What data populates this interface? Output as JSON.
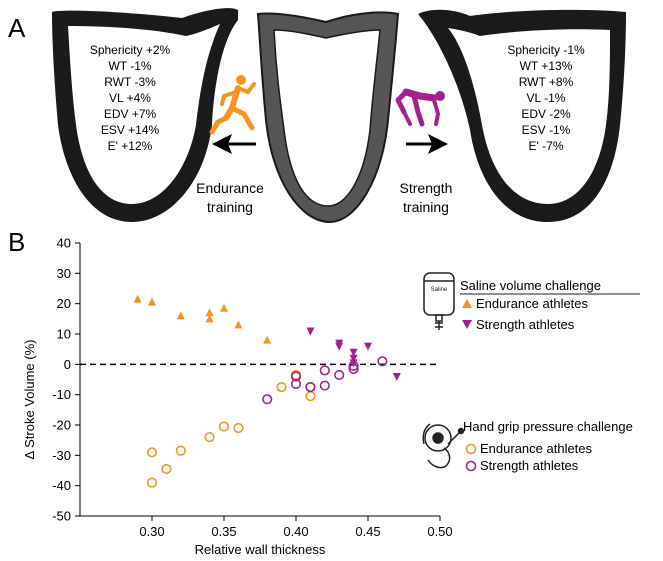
{
  "panel_a": {
    "label": "A",
    "endurance_stats": [
      "Sphericity +2%",
      "WT -1%",
      "RWT -3%",
      "VL +4%",
      "EDV +7%",
      "ESV +14%",
      "E' +12%"
    ],
    "strength_stats": [
      "Sphericity -1%",
      "WT +13%",
      "RWT +8%",
      "VL -1%",
      "EDV -2%",
      "ESV -1%",
      "E' -7%"
    ],
    "endurance_caption": [
      "Endurance",
      "training"
    ],
    "strength_caption": [
      "Strength",
      "training"
    ],
    "colors": {
      "endurance": "#f7941d",
      "strength": "#a3228e",
      "heart_dark": "#1a1a1a",
      "heart_mid": "#555555"
    },
    "icons": [
      "runner-icon",
      "sprinter-start-icon",
      "arrow-left-icon",
      "arrow-right-icon"
    ]
  },
  "panel_b": {
    "label": "B",
    "saline_legend": {
      "title": "Saline volume challenge",
      "items": [
        "Endurance athletes",
        "Strength athletes"
      ],
      "bag_text": "Saline"
    },
    "handgrip_legend": {
      "title": "Hand grip pressure challenge",
      "items": [
        "Endurance athletes",
        "Strength athletes"
      ]
    }
  },
  "chart_data": {
    "type": "scatter",
    "xlabel": "Relative wall thickness",
    "ylabel": "Δ Stroke Volume (%)",
    "xlim": [
      0.25,
      0.5
    ],
    "ylim": [
      -50,
      40
    ],
    "xticks": [
      "0.30",
      "0.35",
      "0.40",
      "0.45",
      "0.50"
    ],
    "yticks": [
      "40",
      "30",
      "20",
      "10",
      "0",
      "-10",
      "-20",
      "-30",
      "-40",
      "-50"
    ],
    "reference_line_y": 0,
    "series": [
      {
        "name": "Endurance athletes",
        "challenge": "Saline volume challenge",
        "marker": "triangle-up",
        "color": "#f7941d",
        "points": [
          [
            0.29,
            21.5
          ],
          [
            0.3,
            20.5
          ],
          [
            0.32,
            16
          ],
          [
            0.34,
            17
          ],
          [
            0.34,
            15
          ],
          [
            0.35,
            18.5
          ],
          [
            0.36,
            13
          ],
          [
            0.38,
            8
          ]
        ]
      },
      {
        "name": "Strength athletes",
        "challenge": "Saline volume challenge",
        "marker": "triangle-down",
        "color": "#a3228e",
        "points": [
          [
            0.41,
            11
          ],
          [
            0.43,
            7
          ],
          [
            0.43,
            6
          ],
          [
            0.44,
            4
          ],
          [
            0.44,
            2
          ],
          [
            0.45,
            6
          ],
          [
            0.44,
            0.5
          ],
          [
            0.47,
            -4
          ]
        ]
      },
      {
        "name": "Endurance athletes",
        "challenge": "Hand grip pressure challenge",
        "marker": "circle-open",
        "color": "#f7941d",
        "points": [
          [
            0.3,
            -29
          ],
          [
            0.3,
            -39
          ],
          [
            0.31,
            -34.5
          ],
          [
            0.32,
            -28.5
          ],
          [
            0.34,
            -24
          ],
          [
            0.35,
            -20.5
          ],
          [
            0.36,
            -21
          ],
          [
            0.39,
            -7.5
          ],
          [
            0.4,
            -3.5
          ],
          [
            0.41,
            -10.5
          ],
          [
            0.41,
            -7.5
          ]
        ]
      },
      {
        "name": "Strength athletes",
        "challenge": "Hand grip pressure challenge",
        "marker": "circle-open",
        "color": "#a3228e",
        "points": [
          [
            0.38,
            -11.5
          ],
          [
            0.4,
            -4
          ],
          [
            0.4,
            -6.5
          ],
          [
            0.41,
            -7.5
          ],
          [
            0.42,
            -7
          ],
          [
            0.42,
            -2
          ],
          [
            0.43,
            -3.5
          ],
          [
            0.44,
            -1.5
          ],
          [
            0.44,
            -0.5
          ],
          [
            0.46,
            1
          ]
        ]
      }
    ]
  }
}
